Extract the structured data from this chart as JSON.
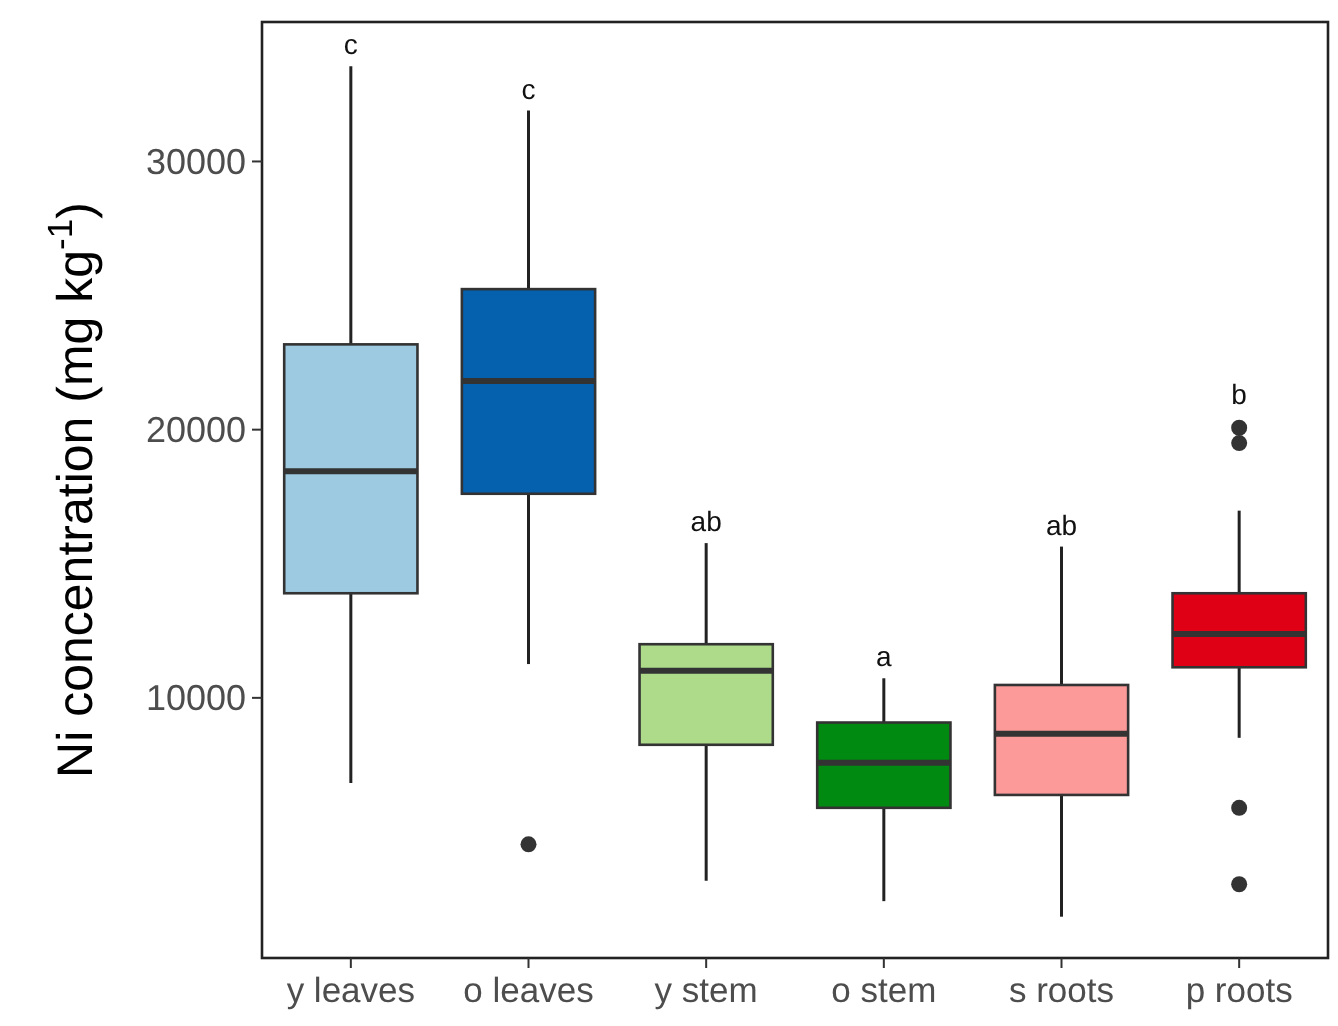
{
  "chart_data": {
    "type": "box",
    "ylabel": "Ni concentration (mg kg$^{-1}$)",
    "categories": [
      "y leaves",
      "o leaves",
      "y stem",
      "o stem",
      "s roots",
      "p roots"
    ],
    "colors": [
      "#9ecae1",
      "#0560ad",
      "#addb8a",
      "#008a12",
      "#fb9a99",
      "#e00016"
    ],
    "boxes": [
      {
        "low": 6825,
        "q1": 13900,
        "median": 18450,
        "q3": 23180,
        "high": 33550
      },
      {
        "low": 11260,
        "q1": 17610,
        "median": 21810,
        "q3": 25240,
        "high": 31900,
        "outliers": [
          4540
        ]
      },
      {
        "low": 3180,
        "q1": 8250,
        "median": 11010,
        "q3": 12000,
        "high": 15770
      },
      {
        "low": 2420,
        "q1": 5900,
        "median": 7580,
        "q3": 9080,
        "high": 10730
      },
      {
        "low": 1840,
        "q1": 6380,
        "median": 8660,
        "q3": 10480,
        "high": 15640
      },
      {
        "low": 8510,
        "q1": 11140,
        "median": 12380,
        "q3": 13900,
        "high": 16980,
        "outliers": [
          20070,
          19500,
          5900,
          3050
        ]
      }
    ],
    "ylim": [
      300,
      35200
    ],
    "yticks": [
      10000,
      20000,
      30000
    ],
    "grid": false,
    "annotations": [
      "c",
      "c",
      "ab",
      "a",
      "ab",
      "b"
    ]
  }
}
